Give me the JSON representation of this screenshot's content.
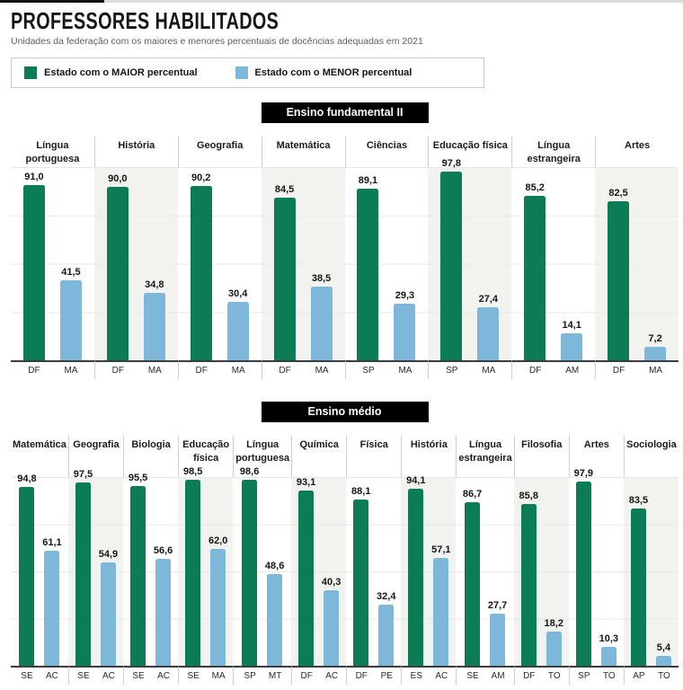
{
  "page": {
    "title": "PROFESSORES HABILITADOS",
    "subtitle": "Unidades da federação com os maiores e menores percentuais de docências adequadas em 2021"
  },
  "legend": {
    "items": [
      {
        "label": "Estado com o MAIOR percentual",
        "color": "#0b7c55"
      },
      {
        "label": "Estado com o MENOR percentual",
        "color": "#7db8da"
      }
    ]
  },
  "chart_data": [
    {
      "type": "bar",
      "title": "Ensino fundamental II",
      "ylim": [
        0,
        100
      ],
      "grid": true,
      "categories": [
        "Língua portuguesa",
        "História",
        "Geografia",
        "Matemática",
        "Ciências",
        "Educação física",
        "Língua estrangeira",
        "Artes"
      ],
      "series": [
        {
          "name": "Estado com o MAIOR percentual",
          "role": "max",
          "color": "#0b7c55",
          "values": [
            91.0,
            90.0,
            90.2,
            84.5,
            89.1,
            97.8,
            85.2,
            82.5
          ],
          "value_labels": [
            "91,0",
            "90,0",
            "90,2",
            "84,5",
            "89,1",
            "97,8",
            "85,2",
            "82,5"
          ],
          "states": [
            "DF",
            "DF",
            "DF",
            "DF",
            "SP",
            "SP",
            "DF",
            "DF"
          ]
        },
        {
          "name": "Estado com o MENOR percentual",
          "role": "min",
          "color": "#7db8da",
          "values": [
            41.5,
            34.8,
            30.4,
            38.5,
            29.3,
            27.4,
            14.1,
            7.2
          ],
          "value_labels": [
            "41,5",
            "34,8",
            "30,4",
            "38,5",
            "29,3",
            "27,4",
            "14,1",
            "7,2"
          ],
          "states": [
            "MA",
            "MA",
            "MA",
            "MA",
            "MA",
            "MA",
            "AM",
            "MA"
          ]
        }
      ]
    },
    {
      "type": "bar",
      "title": "Ensino médio",
      "ylim": [
        0,
        100
      ],
      "grid": true,
      "categories": [
        "Matemática",
        "Geografia",
        "Biologia",
        "Educação física",
        "Língua portuguesa",
        "Química",
        "Física",
        "História",
        "Língua estrangeira",
        "Filosofia",
        "Artes",
        "Sociologia"
      ],
      "series": [
        {
          "name": "Estado com o MAIOR percentual",
          "role": "max",
          "color": "#0b7c55",
          "values": [
            94.8,
            97.5,
            95.5,
            98.5,
            98.6,
            93.1,
            88.1,
            94.1,
            86.7,
            85.8,
            97.9,
            83.5
          ],
          "value_labels": [
            "94,8",
            "97,5",
            "95,5",
            "98,5",
            "98,6",
            "93,1",
            "88,1",
            "94,1",
            "86,7",
            "85,8",
            "97,9",
            "83,5"
          ],
          "states": [
            "SE",
            "SE",
            "SE",
            "SE",
            "SP",
            "DF",
            "DF",
            "ES",
            "SE",
            "DF",
            "SP",
            "AP"
          ]
        },
        {
          "name": "Estado com o MENOR percentual",
          "role": "min",
          "color": "#7db8da",
          "values": [
            61.1,
            54.9,
            56.6,
            62.0,
            48.6,
            40.3,
            32.4,
            57.1,
            27.7,
            18.2,
            10.3,
            5.4
          ],
          "value_labels": [
            "61,1",
            "54,9",
            "56,6",
            "62,0",
            "48,6",
            "40,3",
            "32,4",
            "57,1",
            "27,7",
            "18,2",
            "10,3",
            "5,4"
          ],
          "states": [
            "AC",
            "AC",
            "AC",
            "MA",
            "MT",
            "AC",
            "PE",
            "AC",
            "AM",
            "TO",
            "TO",
            "TO"
          ]
        }
      ]
    }
  ]
}
